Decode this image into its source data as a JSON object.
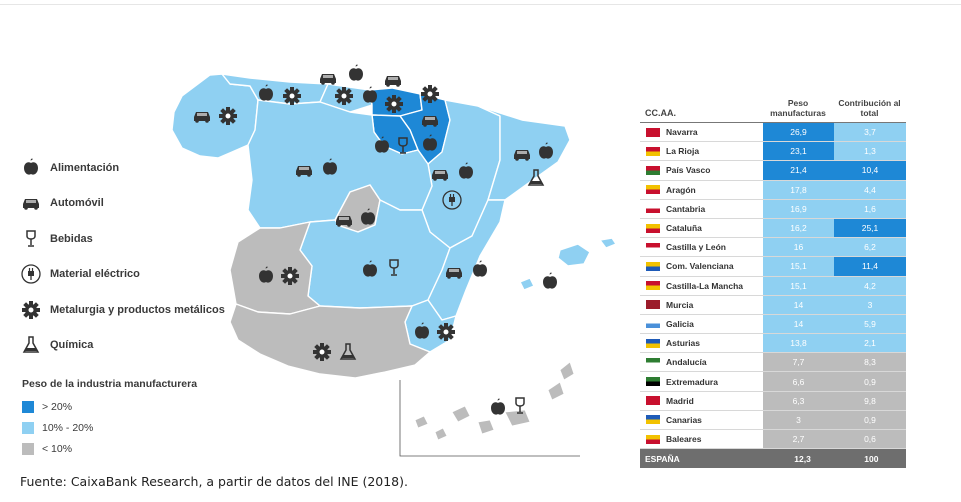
{
  "legend": {
    "items": [
      {
        "label": "Alimentación",
        "icon": "apple-icon"
      },
      {
        "label": "Automóvil",
        "icon": "car-icon"
      },
      {
        "label": "Bebidas",
        "icon": "wine-glass-icon"
      },
      {
        "label": "Material eléctrico",
        "icon": "plug-icon"
      },
      {
        "label": "Metalurgia y productos metálicos",
        "icon": "gear-icon"
      },
      {
        "label": "Química",
        "icon": "flask-icon"
      }
    ],
    "scale_title": "Peso de la industria manufacturera",
    "scale": [
      {
        "label": "> 20%",
        "color": "#1e88d6"
      },
      {
        "label": "10% - 20%",
        "color": "#8fd0f2"
      },
      {
        "label": "< 10%",
        "color": "#bcbcbc"
      }
    ]
  },
  "table": {
    "col1": "CC.AA.",
    "col2": "Peso manufacturas",
    "col3": "Contribución al total",
    "rows": [
      {
        "name": "Navarra",
        "peso": "26,9",
        "contrib": "3,7"
      },
      {
        "name": "La Rioja",
        "peso": "23,1",
        "contrib": "1,3"
      },
      {
        "name": "País Vasco",
        "peso": "21,4",
        "contrib": "10,4"
      },
      {
        "name": "Aragón",
        "peso": "17,8",
        "contrib": "4,4"
      },
      {
        "name": "Cantabria",
        "peso": "16,9",
        "contrib": "1,6"
      },
      {
        "name": "Cataluña",
        "peso": "16,2",
        "contrib": "25,1"
      },
      {
        "name": "Castilla y León",
        "peso": "16",
        "contrib": "6,2"
      },
      {
        "name": "Com. Valenciana",
        "peso": "15,1",
        "contrib": "11,4"
      },
      {
        "name": "Castilla-La Mancha",
        "peso": "15,1",
        "contrib": "4,2"
      },
      {
        "name": "Murcia",
        "peso": "14",
        "contrib": "3"
      },
      {
        "name": "Galicia",
        "peso": "14",
        "contrib": "5,9"
      },
      {
        "name": "Asturias",
        "peso": "13,8",
        "contrib": "2,1"
      },
      {
        "name": "Andalucía",
        "peso": "7,7",
        "contrib": "8,3"
      },
      {
        "name": "Extremadura",
        "peso": "6,6",
        "contrib": "0,9"
      },
      {
        "name": "Madrid",
        "peso": "6,3",
        "contrib": "9,8"
      },
      {
        "name": "Canarias",
        "peso": "3",
        "contrib": "0,9"
      },
      {
        "name": "Baleares",
        "peso": "2,7",
        "contrib": "0,6"
      }
    ],
    "total": {
      "name": "ESPAÑA",
      "peso": "12,3",
      "contrib": "100"
    }
  },
  "colors": {
    "high": "#1e88d6",
    "mid": "#8fd0f2",
    "low": "#bcbcbc",
    "border": "#ffffff",
    "icon": "#333333"
  },
  "source": "Fuente: CaixaBank Research, a partir de datos del INE (2018)."
}
